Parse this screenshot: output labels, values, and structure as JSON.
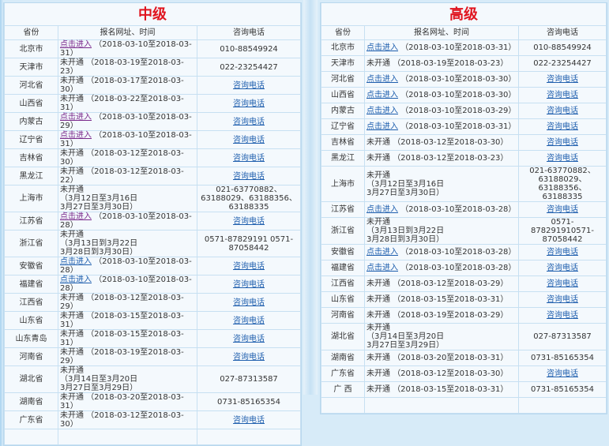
{
  "columns": [
    "省份",
    "报名网址、时间",
    "咨询电话"
  ],
  "link_text": "点击进入",
  "phone_link_text": "咨询电话",
  "colors": {
    "title": "#e0141e",
    "link": "#1f5fae",
    "visited_link": "#7a2a8c"
  },
  "left": {
    "title": "中级",
    "rows": [
      {
        "province": "北京市",
        "status": "点击进入",
        "link": true,
        "visited": true,
        "dates": [
          "（2018-03-10至2018-03-31）"
        ],
        "phone": "010-88549924"
      },
      {
        "province": "天津市",
        "status": "未开通",
        "dates": [
          "（2018-03-19至2018-03-23）"
        ],
        "phone": "022-23254427"
      },
      {
        "province": "河北省",
        "status": "未开通",
        "dates": [
          "（2018-03-17至2018-03-30）"
        ],
        "phone": "咨询电话",
        "phone_link": true
      },
      {
        "province": "山西省",
        "status": "未开通",
        "dates": [
          "（2018-03-22至2018-03-31）"
        ],
        "phone": "咨询电话",
        "phone_link": true
      },
      {
        "province": "内蒙古",
        "status": "点击进入",
        "link": true,
        "visited": true,
        "dates": [
          "（2018-03-10至2018-03-29）"
        ],
        "phone": "咨询电话",
        "phone_link": true
      },
      {
        "province": "辽宁省",
        "status": "点击进入",
        "link": true,
        "visited": true,
        "dates": [
          "（2018-03-10至2018-03-31）"
        ],
        "phone": "咨询电话",
        "phone_link": true
      },
      {
        "province": "吉林省",
        "status": "未开通",
        "dates": [
          "（2018-03-12至2018-03-30）"
        ],
        "phone": "咨询电话",
        "phone_link": true
      },
      {
        "province": "黑龙江",
        "status": "未开通",
        "dates": [
          "（2018-03-12至2018-03-22）"
        ],
        "phone": "咨询电话",
        "phone_link": true
      },
      {
        "province": "上海市",
        "status": "未开通",
        "multiline": true,
        "dates": [
          "（3月12日至3月16日",
          "3月27日至3月30日）"
        ],
        "phone": "021-63770882、63188029、63188356、63188335"
      },
      {
        "province": "江苏省",
        "status": "点击进入",
        "link": true,
        "visited": true,
        "dates": [
          "（2018-03-10至2018-03-28）"
        ],
        "phone": "咨询电话",
        "phone_link": true
      },
      {
        "province": "浙江省",
        "status": "未开通",
        "multiline": true,
        "dates": [
          "（3月13日到3月22日",
          "3月28日到3月30日）"
        ],
        "phone": "0571-87829191 0571-87058442"
      },
      {
        "province": "安徽省",
        "status": "点击进入",
        "link": true,
        "dates": [
          "（2018-03-10至2018-03-28）"
        ],
        "phone": "咨询电话",
        "phone_link": true
      },
      {
        "province": "福建省",
        "status": "点击进入",
        "link": true,
        "dates": [
          "（2018-03-10至2018-03-28）"
        ],
        "phone": "咨询电话",
        "phone_link": true
      },
      {
        "province": "江西省",
        "status": "未开通",
        "dates": [
          "（2018-03-12至2018-03-29）"
        ],
        "phone": "咨询电话",
        "phone_link": true
      },
      {
        "province": "山东省",
        "status": "未开通",
        "dates": [
          "（2018-03-15至2018-03-31）"
        ],
        "phone": "咨询电话",
        "phone_link": true
      },
      {
        "province": "山东青岛",
        "status": "未开通",
        "dates": [
          "（2018-03-15至2018-03-31）"
        ],
        "phone": "咨询电话",
        "phone_link": true
      },
      {
        "province": "河南省",
        "status": "未开通",
        "dates": [
          "（2018-03-19至2018-03-29）"
        ],
        "phone": "咨询电话",
        "phone_link": true
      },
      {
        "province": "湖北省",
        "status": "未开通",
        "multiline": true,
        "dates": [
          "（3月14日至3月20日",
          "3月27日至3月29日）"
        ],
        "phone": "027-87313587"
      },
      {
        "province": "湖南省",
        "status": "未开通",
        "dates": [
          "（2018-03-20至2018-03-31）"
        ],
        "phone": "0731-85165354"
      },
      {
        "province": "广东省",
        "status": "未开通",
        "dates": [
          "（2018-03-12至2018-03-30）"
        ],
        "phone": "咨询电话",
        "phone_link": true
      }
    ]
  },
  "right": {
    "title": "高级",
    "rows": [
      {
        "province": "北京市",
        "status": "点击进入",
        "link": true,
        "dates": [
          "（2018-03-10至2018-03-31）"
        ],
        "phone": "010-88549924"
      },
      {
        "province": "天津市",
        "status": "未开通",
        "dates": [
          "（2018-03-19至2018-03-23）"
        ],
        "phone": "022-23254427"
      },
      {
        "province": "河北省",
        "status": "点击进入",
        "link": true,
        "dates": [
          "（2018-03-10至2018-03-30）"
        ],
        "phone": "咨询电话",
        "phone_link": true
      },
      {
        "province": "山西省",
        "status": "点击进入",
        "link": true,
        "dates": [
          "（2018-03-10至2018-03-30）"
        ],
        "phone": "咨询电话",
        "phone_link": true
      },
      {
        "province": "内蒙古",
        "status": "点击进入",
        "link": true,
        "dates": [
          "（2018-03-10至2018-03-29）"
        ],
        "phone": "咨询电话",
        "phone_link": true
      },
      {
        "province": "辽宁省",
        "status": "点击进入",
        "link": true,
        "dates": [
          "（2018-03-10至2018-03-31）"
        ],
        "phone": "咨询电话",
        "phone_link": true
      },
      {
        "province": "吉林省",
        "status": "未开通",
        "dates": [
          "（2018-03-12至2018-03-30）"
        ],
        "phone": "咨询电话",
        "phone_link": true
      },
      {
        "province": "黑龙江",
        "status": "未开通",
        "dates": [
          "（2018-03-12至2018-03-23）"
        ],
        "phone": "咨询电话",
        "phone_link": true
      },
      {
        "province": "上海市",
        "status": "未开通",
        "multiline": true,
        "dates": [
          "（3月12日至3月16日",
          "3月27日至3月30日）"
        ],
        "phone": "021-63770882、63188029、63188356、63188335"
      },
      {
        "province": "江苏省",
        "status": "点击进入",
        "link": true,
        "dates": [
          "（2018-03-10至2018-03-28）"
        ],
        "phone": "咨询电话",
        "phone_link": true
      },
      {
        "province": "浙江省",
        "status": "未开通",
        "multiline": true,
        "dates": [
          "（3月13日到3月22日",
          "3月28日到3月30日）"
        ],
        "phone": "0571-878291910571-87058442"
      },
      {
        "province": "安徽省",
        "status": "点击进入",
        "link": true,
        "dates": [
          "（2018-03-10至2018-03-28）"
        ],
        "phone": "咨询电话",
        "phone_link": true
      },
      {
        "province": "福建省",
        "status": "点击进入",
        "link": true,
        "dates": [
          "（2018-03-10至2018-03-28）"
        ],
        "phone": "咨询电话",
        "phone_link": true
      },
      {
        "province": "江西省",
        "status": "未开通",
        "dates": [
          "（2018-03-12至2018-03-29）"
        ],
        "phone": "咨询电话",
        "phone_link": true
      },
      {
        "province": "山东省",
        "status": "未开通",
        "dates": [
          "（2018-03-15至2018-03-31）"
        ],
        "phone": "咨询电话",
        "phone_link": true
      },
      {
        "province": "河南省",
        "status": "未开通",
        "dates": [
          "（2018-03-19至2018-03-29）"
        ],
        "phone": "咨询电话",
        "phone_link": true
      },
      {
        "province": "湖北省",
        "status": "未开通",
        "multiline": true,
        "dates": [
          "（3月14日至3月20日",
          "3月27日至3月29日）"
        ],
        "phone": "027-87313587"
      },
      {
        "province": "湖南省",
        "status": "未开通",
        "dates": [
          "（2018-03-20至2018-03-31）"
        ],
        "phone": "0731-85165354"
      },
      {
        "province": "广东省",
        "status": "未开通",
        "dates": [
          "（2018-03-12至2018-03-30）"
        ],
        "phone": "咨询电话",
        "phone_link": true
      },
      {
        "province": "广 西",
        "status": "未开通",
        "dates": [
          "（2018-03-15至2018-03-31）"
        ],
        "phone": "0731-85165354"
      }
    ]
  }
}
